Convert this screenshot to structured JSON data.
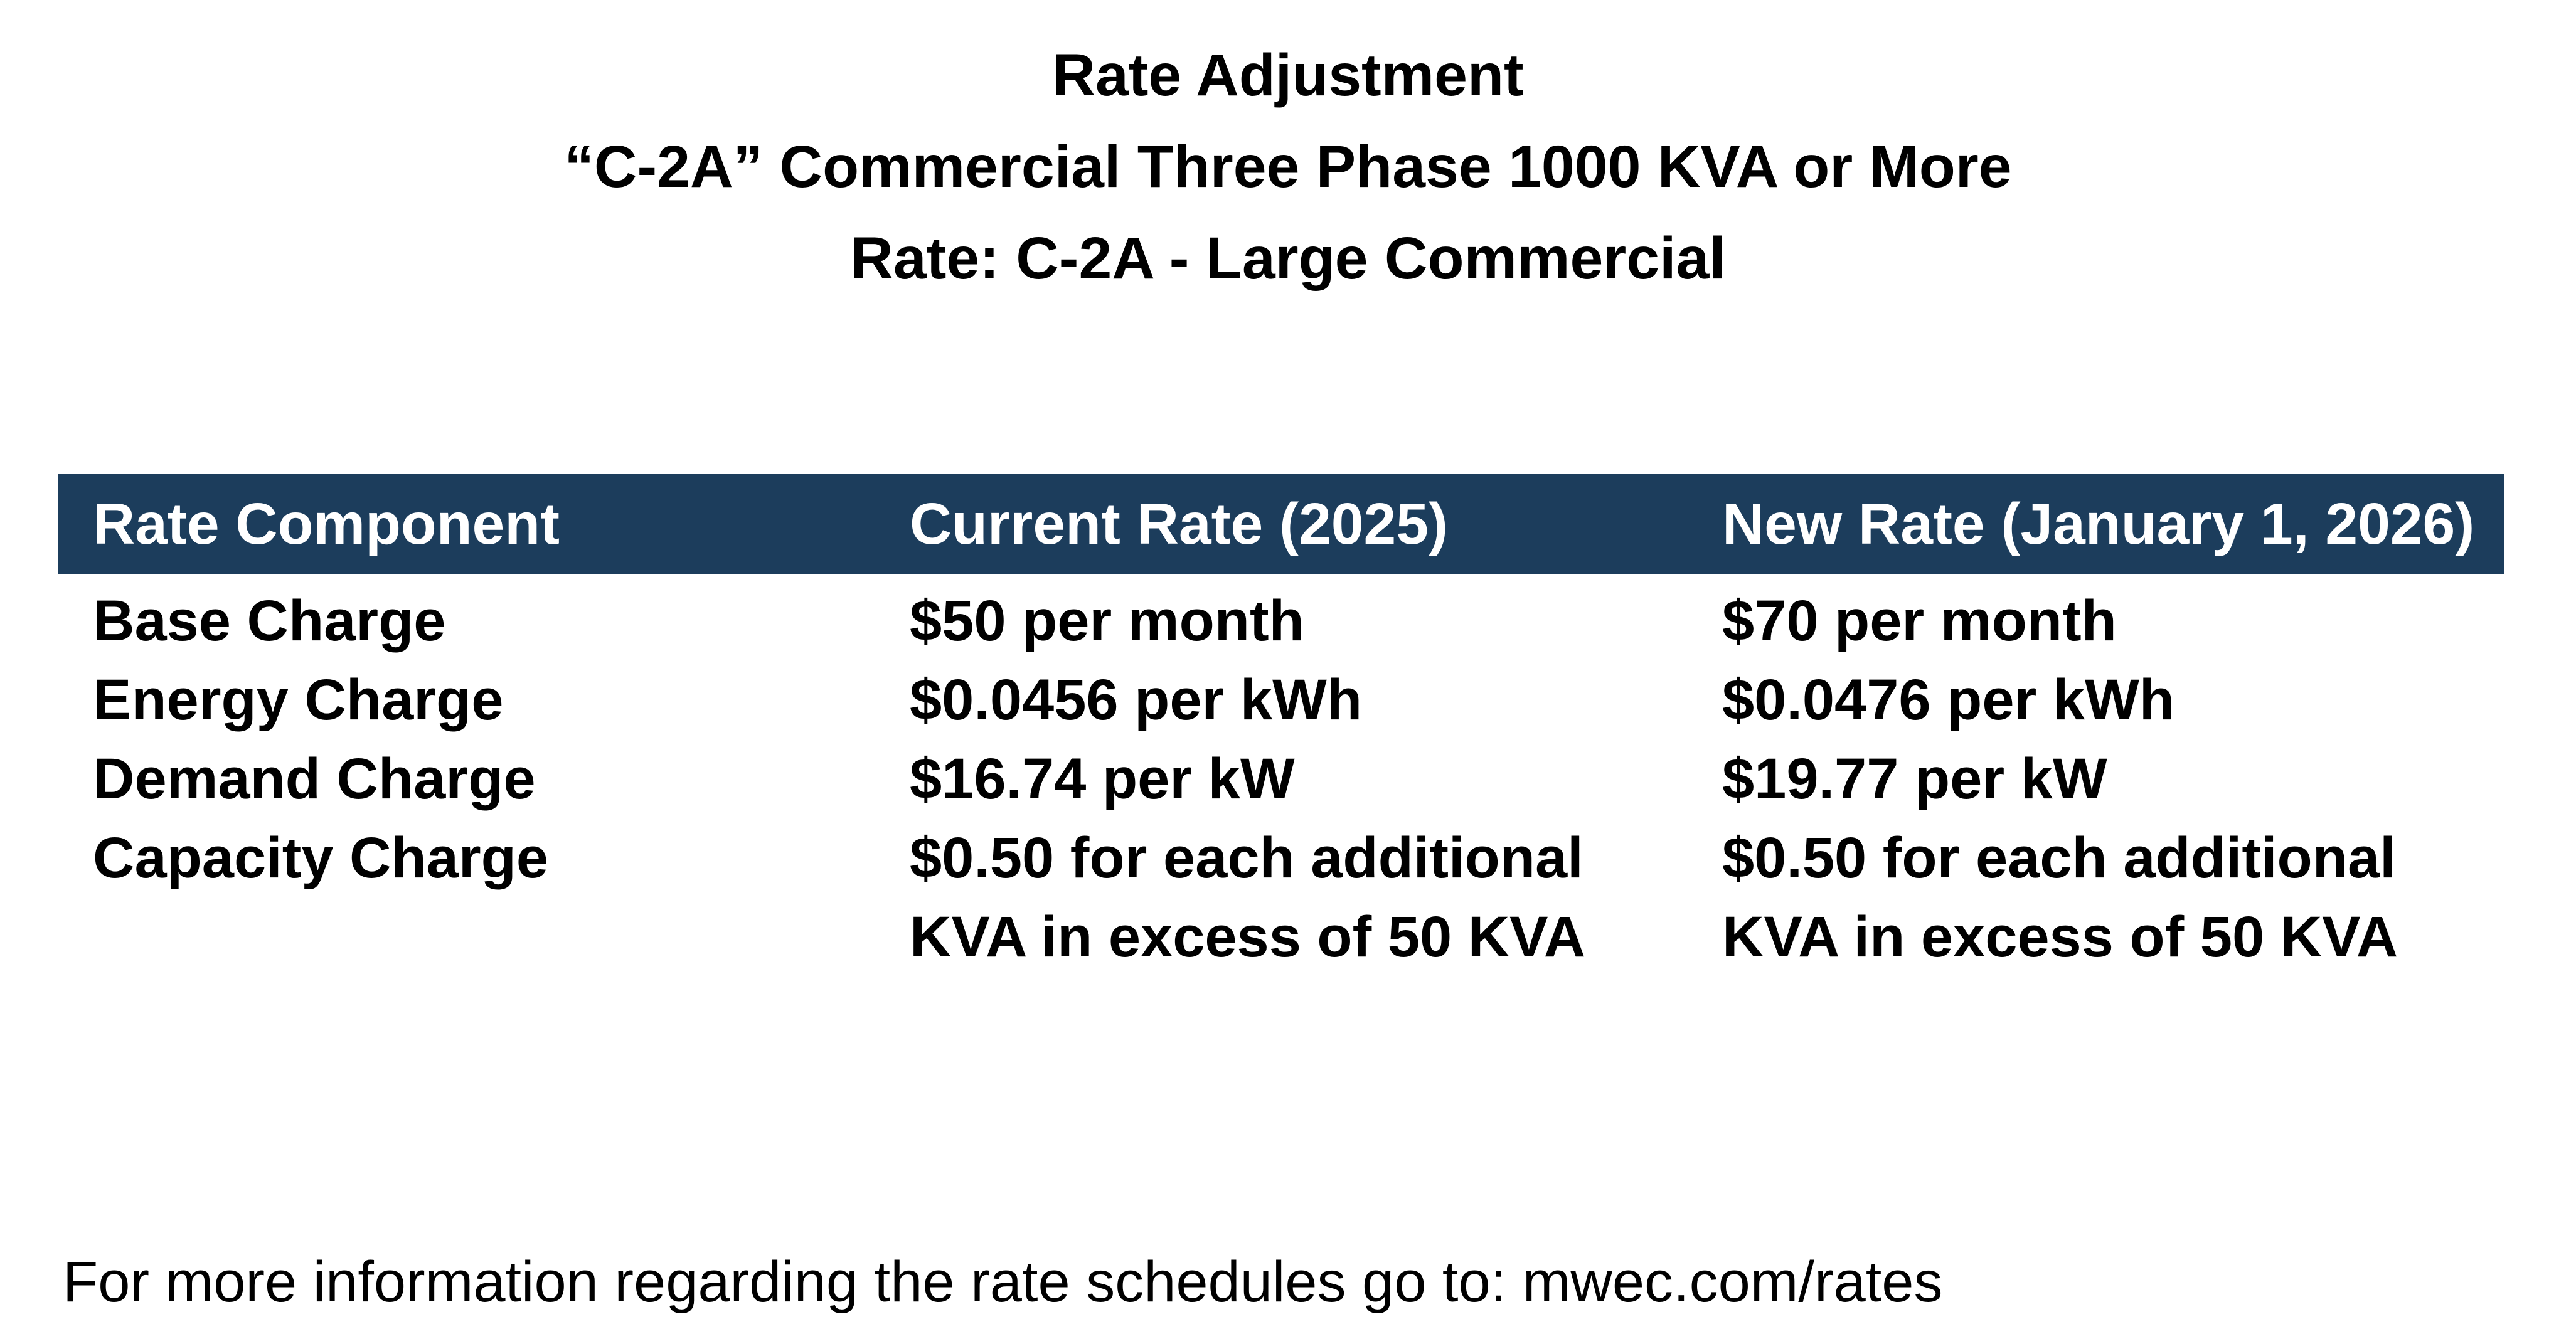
{
  "title": {
    "line1": "Rate Adjustment",
    "line2": "“C-2A” Commercial Three Phase 1000 KVA or More",
    "line3": "Rate: C-2A - Large Commercial"
  },
  "table": {
    "header": {
      "component": "Rate Component",
      "current": "Current Rate (2025)",
      "new": "New Rate (January 1, 2026)"
    },
    "rows": [
      {
        "component": "Base Charge",
        "current": "$50 per month",
        "new": "$70 per month"
      },
      {
        "component": "Energy Charge",
        "current": "$0.0456 per kWh",
        "new": "$0.0476 per kWh"
      },
      {
        "component": "Demand Charge",
        "current": "$16.74 per kW",
        "new": "$19.77 per kW"
      },
      {
        "component": "Capacity Charge",
        "current": [
          "$0.50 for each additional",
          "KVA in excess of 50 KVA"
        ],
        "new": [
          "$0.50 for each additional",
          "KVA in excess of 50 KVA"
        ]
      }
    ]
  },
  "footer": {
    "text": "For more information regarding the rate schedules go to: mwec.com/rates"
  },
  "colors": {
    "header_bg": "#1C3D5C",
    "header_text": "#FFFFFF",
    "body_text": "#000000",
    "page_bg": "#FFFFFF"
  }
}
